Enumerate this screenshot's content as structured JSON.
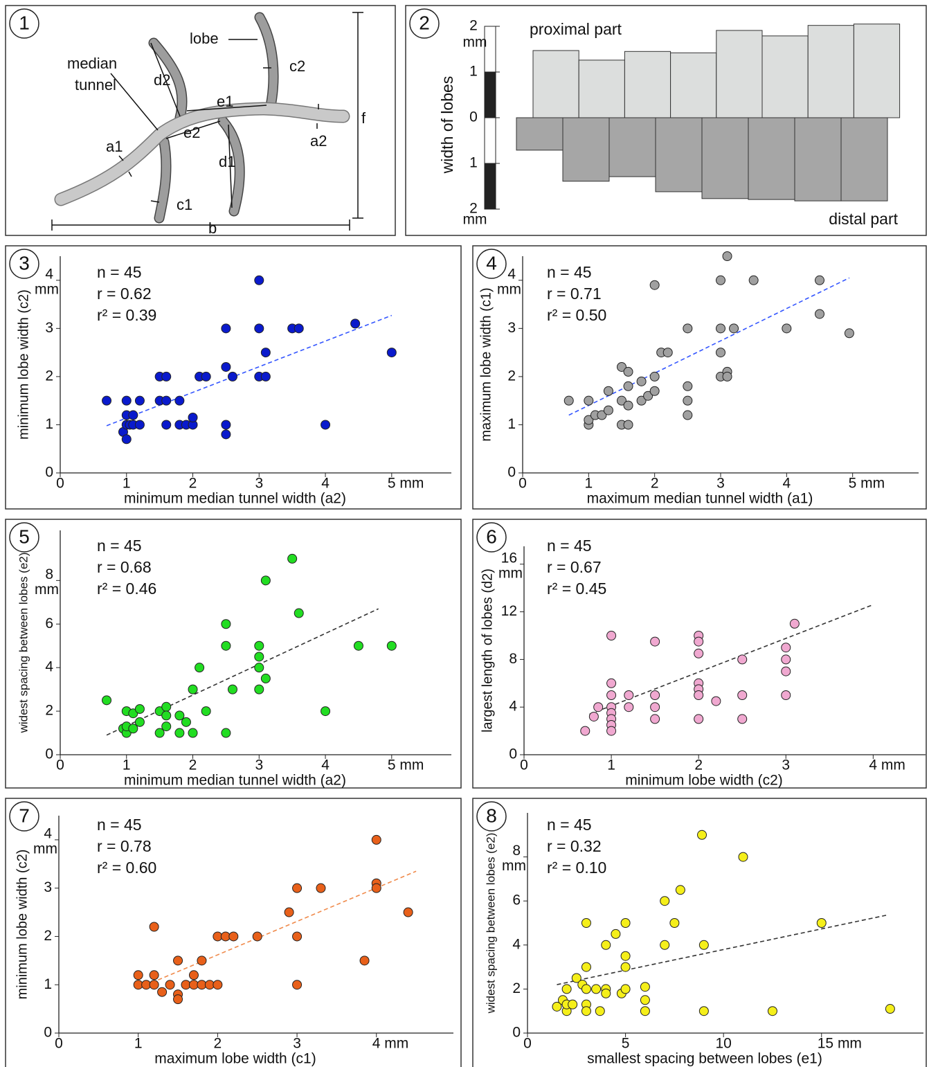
{
  "diagram": {
    "panel": "1",
    "labels": [
      "median",
      "tunnel",
      "lobe",
      "d2",
      "c2",
      "e1",
      "e2",
      "a1",
      "a2",
      "d1",
      "c1",
      "b",
      "f"
    ]
  },
  "chart_data": [
    {
      "type": "bar",
      "panel": "2",
      "ylabel": "width of lobes",
      "y_unit": "mm",
      "ylim": [
        -2,
        2
      ],
      "yticks": [
        2,
        1,
        0,
        {
          "value": -1,
          "label": "1"
        },
        {
          "value": -2,
          "label": "2"
        }
      ],
      "series": [
        {
          "name": "proximal part",
          "color": "#dcdedd",
          "direction": "up",
          "values": [
            1.47,
            1.26,
            1.45,
            1.42,
            1.91,
            1.79,
            2.02,
            2.05
          ]
        },
        {
          "name": "distal part",
          "color": "#a6a6a6",
          "direction": "down",
          "values": [
            0.71,
            1.39,
            1.29,
            1.62,
            1.77,
            1.79,
            1.82,
            1.82
          ]
        }
      ]
    },
    {
      "type": "scatter",
      "panel": "3",
      "stats": [
        "n = 45",
        "r = 0.62",
        "r² = 0.39"
      ],
      "xlabel": "minimum median tunnel width (a2)",
      "ylabel": "minimum lobe width (c2)",
      "y_unit": "mm",
      "xlim": [
        0,
        5.9
      ],
      "ylim": [
        0,
        4.5
      ],
      "xticks": [
        0,
        1,
        2,
        3,
        4,
        {
          "value": 5,
          "label": "5 mm"
        }
      ],
      "yticks": [
        0,
        1,
        2,
        3,
        4
      ],
      "color": "#0a1acc",
      "x": [
        0.7,
        0.95,
        1,
        1,
        1,
        1,
        1.05,
        1.1,
        1.1,
        1.2,
        1.2,
        1.5,
        1.5,
        1.6,
        1.6,
        1.6,
        1.8,
        1.8,
        1.9,
        2,
        2,
        2.1,
        2.2,
        2.5,
        2.5,
        2.5,
        2.5,
        2.6,
        3,
        3,
        3,
        3.1,
        3.1,
        3.5,
        3.6,
        4,
        4.45,
        5
      ],
      "values": [
        1.5,
        0.85,
        0.7,
        1,
        1.2,
        1.5,
        1,
        1.2,
        1,
        1,
        1.5,
        1.5,
        2,
        2,
        1.5,
        1,
        1.5,
        1,
        1,
        1,
        1.15,
        2,
        2,
        3,
        2.2,
        1,
        0.8,
        2,
        4,
        3,
        2,
        2,
        2.5,
        3,
        3,
        1,
        3.1,
        2.5
      ],
      "trendline": {
        "color": "#3355ff",
        "x": [
          0.7,
          5
        ],
        "values": [
          0.98,
          3.27
        ]
      }
    },
    {
      "type": "scatter",
      "panel": "4",
      "stats": [
        "n = 45",
        "r = 0.71",
        "r² = 0.50"
      ],
      "xlabel": "maximum median tunnel width (a1)",
      "ylabel": "maximum lobe width (c1)",
      "y_unit": "mm",
      "xlim": [
        0,
        6
      ],
      "ylim": [
        0,
        4.5
      ],
      "xticks": [
        0,
        1,
        2,
        3,
        4,
        {
          "value": 5,
          "label": "5 mm"
        }
      ],
      "yticks": [
        0,
        1,
        2,
        3,
        4
      ],
      "color": "#a0a0a0",
      "x": [
        0.7,
        1,
        1,
        1,
        1.1,
        1.2,
        1.3,
        1.3,
        1.5,
        1.5,
        1.5,
        1.6,
        1.6,
        1.6,
        1.6,
        1.8,
        1.8,
        1.9,
        2,
        2,
        2,
        2.1,
        2.2,
        2.5,
        2.5,
        2.5,
        2.5,
        3,
        3,
        3,
        3,
        3.1,
        3.1,
        3.1,
        3.2,
        3.5,
        4,
        4.5,
        4.5,
        4.95
      ],
      "values": [
        1.5,
        1,
        1.1,
        1.5,
        1.2,
        1.2,
        1.7,
        1.3,
        2.2,
        1.5,
        1,
        1,
        1.4,
        1.8,
        2.1,
        1.9,
        1.5,
        1.6,
        1.7,
        2,
        3.9,
        2.5,
        2.5,
        3,
        1.8,
        1.5,
        1.2,
        4,
        3,
        2.5,
        2,
        4.5,
        2.1,
        2,
        3,
        4,
        3,
        4,
        3.3,
        2.9
      ],
      "trendline": {
        "color": "#3355ff",
        "x": [
          0.7,
          4.95
        ],
        "values": [
          1.2,
          4.05
        ]
      }
    },
    {
      "type": "scatter",
      "panel": "5",
      "stats": [
        "n = 45",
        "r = 0.68",
        "r² = 0.46"
      ],
      "xlabel": "minimum median tunnel width (a2)",
      "ylabel": "widest spacing between lobes (e2)",
      "y_unit": "mm",
      "xlim": [
        0,
        5.9
      ],
      "ylim": [
        0,
        10.3
      ],
      "xticks": [
        0,
        1,
        2,
        3,
        4,
        {
          "value": 5,
          "label": "5 mm"
        }
      ],
      "yticks": [
        0,
        2,
        4,
        6,
        8
      ],
      "color": "#22dd22",
      "x": [
        0.7,
        0.95,
        1,
        1,
        1,
        1.1,
        1.1,
        1.2,
        1.2,
        1.5,
        1.5,
        1.6,
        1.6,
        1.6,
        1.8,
        1.8,
        1.9,
        2,
        2,
        2.1,
        2.2,
        2.5,
        2.5,
        2.5,
        2.6,
        3,
        3,
        3,
        3,
        3.1,
        3.1,
        3.5,
        3.6,
        4,
        4.5,
        5
      ],
      "values": [
        2.5,
        1.2,
        1,
        2,
        1.3,
        1.9,
        1.2,
        2.1,
        1.5,
        2,
        1,
        2.2,
        1.8,
        1.3,
        1.8,
        1,
        1.5,
        1,
        3,
        4,
        2,
        6,
        5,
        1,
        3,
        5,
        4.5,
        4,
        3,
        8,
        3.5,
        9,
        6.5,
        2,
        5,
        5
      ],
      "trendline": {
        "color": "#333333",
        "x": [
          0.7,
          4.8
        ],
        "values": [
          0.9,
          6.7
        ]
      }
    },
    {
      "type": "scatter",
      "panel": "6",
      "stats": [
        "n = 45",
        "r = 0.67",
        "r² = 0.45"
      ],
      "xlabel": "minimum lobe width (c2)",
      "ylabel": "largest length of lobes (d2)",
      "y_unit": "mm",
      "xlim": [
        0,
        4.6
      ],
      "ylim": [
        0,
        17.5
      ],
      "xticks": [
        0,
        1,
        2,
        3,
        {
          "value": 4,
          "label": "4 mm"
        }
      ],
      "yticks": [
        0,
        4,
        8,
        12,
        16
      ],
      "color": "#f0a8d0",
      "x": [
        0.7,
        0.8,
        0.85,
        1,
        1,
        1,
        1,
        1,
        1,
        1,
        1,
        1.2,
        1.2,
        1.5,
        1.5,
        1.5,
        1.5,
        2,
        2,
        2,
        2,
        2,
        2,
        2,
        2.2,
        2.5,
        2.5,
        2.5,
        3,
        3,
        3,
        3,
        3.1
      ],
      "values": [
        2,
        3.2,
        4,
        10,
        6,
        5,
        4,
        3.5,
        3,
        2.5,
        2,
        5,
        4,
        9.5,
        5,
        4,
        3,
        10,
        9.5,
        8.5,
        6,
        5.5,
        5,
        3,
        4.5,
        8,
        5,
        3,
        9,
        8,
        7,
        5,
        11
      ],
      "trendline": {
        "color": "#333333",
        "x": [
          0.75,
          4
        ],
        "values": [
          3.4,
          12.6
        ]
      }
    },
    {
      "type": "scatter",
      "panel": "7",
      "stats": [
        "n = 45",
        "r = 0.78",
        "r² = 0.60"
      ],
      "xlabel": "maximum lobe width (c1)",
      "ylabel": "minimum lobe width (c2)",
      "y_unit": "mm",
      "xlim": [
        0,
        4.97
      ],
      "ylim": [
        0,
        4.5
      ],
      "xticks": [
        0,
        1,
        2,
        3,
        {
          "value": 4,
          "label": "4 mm"
        }
      ],
      "yticks": [
        0,
        1,
        2,
        3,
        4
      ],
      "color": "#e8601a",
      "x": [
        1,
        1,
        1.1,
        1.2,
        1.2,
        1.2,
        1.3,
        1.4,
        1.5,
        1.5,
        1.5,
        1.6,
        1.7,
        1.7,
        1.8,
        1.8,
        1.9,
        2,
        2,
        2.1,
        2.2,
        2.5,
        2.9,
        3,
        3,
        3,
        3.3,
        3.85,
        4,
        4,
        4,
        4.4
      ],
      "values": [
        1.2,
        1,
        1,
        2.2,
        1.2,
        1,
        0.85,
        1,
        1.5,
        0.8,
        0.7,
        1,
        1,
        1.2,
        1,
        1.5,
        1,
        1,
        2,
        2,
        2,
        2,
        2.5,
        3,
        2,
        1,
        3,
        1.5,
        4,
        3.1,
        3,
        2.5
      ],
      "trendline": {
        "color": "#f08a4b",
        "x": [
          1.25,
          4.5
        ],
        "values": [
          1.1,
          3.35
        ]
      }
    },
    {
      "type": "scatter",
      "panel": "8",
      "stats": [
        "n = 45",
        "r = 0.32",
        "r² = 0.10"
      ],
      "xlabel": "smallest spacing between lobes (e1)",
      "ylabel": "widest spacing between lobes (e2)",
      "y_unit": "mm",
      "xlim": [
        0,
        20.2
      ],
      "ylim": [
        0,
        10
      ],
      "xticks": [
        0,
        5,
        10,
        {
          "value": 15,
          "label": "15 mm"
        }
      ],
      "yticks": [
        0,
        2,
        4,
        6,
        8
      ],
      "color": "#f5ef1a",
      "x": [
        1.5,
        1.8,
        2,
        2,
        2,
        2.3,
        2.5,
        2.8,
        3,
        3,
        3,
        3,
        3,
        3.5,
        3.7,
        4,
        4,
        4,
        4.5,
        4.8,
        5,
        5,
        5,
        5,
        6,
        6,
        6,
        7,
        7,
        7.5,
        7.8,
        8.9,
        9,
        9,
        11,
        12.5,
        15,
        18.5
      ],
      "values": [
        1.2,
        1.5,
        1,
        1.3,
        2,
        1.3,
        2.5,
        2.2,
        5,
        3,
        2,
        1.3,
        1,
        2,
        1,
        4,
        2,
        1.8,
        4.5,
        1.8,
        5,
        3.5,
        3,
        2,
        2.1,
        1.5,
        1,
        6,
        4,
        5,
        6.5,
        9,
        4,
        1,
        8,
        1,
        5,
        1.1
      ],
      "trendline": {
        "color": "#333333",
        "x": [
          1.5,
          18.3
        ],
        "values": [
          2.2,
          5.35
        ]
      }
    }
  ]
}
